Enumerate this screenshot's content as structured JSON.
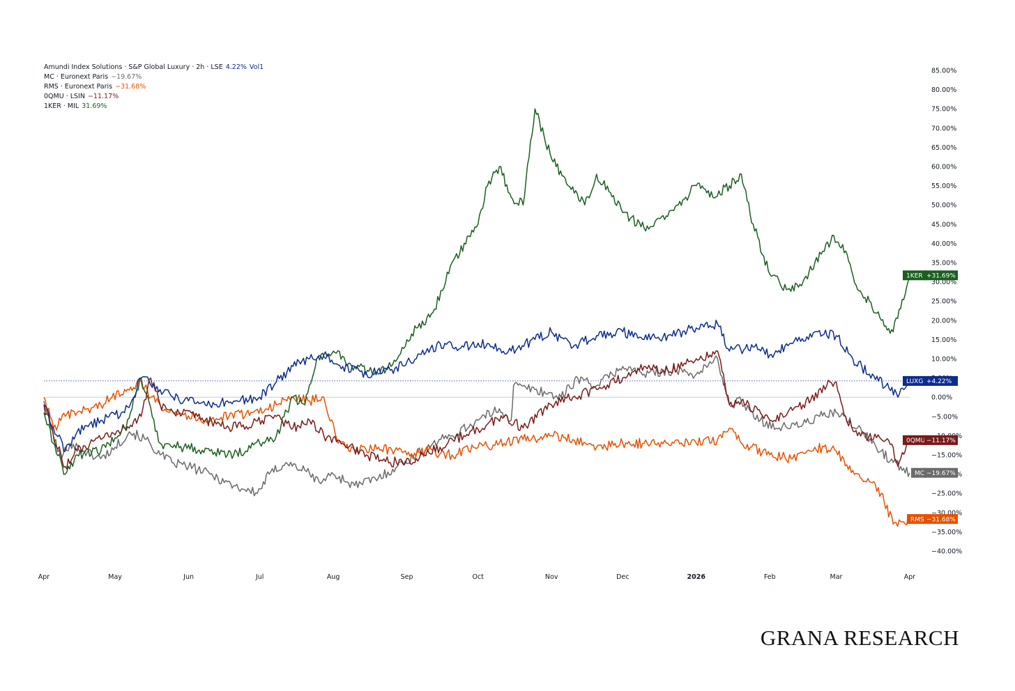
{
  "legend": [
    {
      "label": "Amundi Index Solutions · S&P Global Luxury · 2h · LSE",
      "value": "4.22%",
      "extra": "Vol1",
      "color": "#0d2b8e"
    },
    {
      "label": "MC · Euronext Paris",
      "value": "−19.67%",
      "color": "#6b6b6b"
    },
    {
      "label": "RMS · Euronext Paris",
      "value": "−31.68%",
      "color": "#e65100"
    },
    {
      "label": "0QMU · LSIN",
      "value": "−11.17%",
      "color": "#7a1a1a"
    },
    {
      "label": "1KER · MIL",
      "value": "31.69%",
      "color": "#1b5e20"
    }
  ],
  "watermark": "GRANA RESEARCH",
  "chart_data": {
    "type": "line",
    "y_unit": "%",
    "ylim": [
      -40,
      85
    ],
    "y_ticks": [
      "85.00%",
      "80.00%",
      "75.00%",
      "70.00%",
      "65.00%",
      "60.00%",
      "55.00%",
      "50.00%",
      "45.00%",
      "40.00%",
      "35.00%",
      "30.00%",
      "25.00%",
      "20.00%",
      "15.00%",
      "10.00%",
      "5.00%",
      "0.00%",
      "−5.00%",
      "−10.00%",
      "−15.00%",
      "−20.00%",
      "−25.00%",
      "−30.00%",
      "−35.00%",
      "−40.00%"
    ],
    "x_ticks": [
      {
        "label": "Apr",
        "date": "2025-04-01"
      },
      {
        "label": "May",
        "date": "2025-05-01"
      },
      {
        "label": "Jun",
        "date": "2025-06-01"
      },
      {
        "label": "Jul",
        "date": "2025-07-01"
      },
      {
        "label": "Aug",
        "date": "2025-08-01"
      },
      {
        "label": "Sep",
        "date": "2025-09-01"
      },
      {
        "label": "Oct",
        "date": "2025-10-01"
      },
      {
        "label": "Nov",
        "date": "2025-11-01"
      },
      {
        "label": "Dec",
        "date": "2025-12-01"
      },
      {
        "label": "2026",
        "date": "2026-01-01"
      },
      {
        "label": "Feb",
        "date": "2026-02-01"
      },
      {
        "label": "Mar",
        "date": "2026-03-01"
      },
      {
        "label": "Apr",
        "date": "2026-04-01"
      }
    ],
    "xlim": [
      "2025-04-01",
      "2026-04-01"
    ],
    "reference_line": 4.22,
    "series": [
      {
        "name": "MC",
        "color": "#6b6b6b",
        "last": "−19.67%",
        "tag": "MC",
        "x": [
          "2025-04-01",
          "2025-04-04",
          "2025-04-08",
          "2025-04-12",
          "2025-04-18",
          "2025-04-25",
          "2025-05-01",
          "2025-05-07",
          "2025-05-14",
          "2025-05-20",
          "2025-05-25",
          "2025-06-01",
          "2025-06-10",
          "2025-06-20",
          "2025-06-30",
          "2025-07-05",
          "2025-07-12",
          "2025-07-20",
          "2025-07-26",
          "2025-08-01",
          "2025-08-10",
          "2025-08-20",
          "2025-08-28",
          "2025-09-05",
          "2025-09-12",
          "2025-09-20",
          "2025-10-01",
          "2025-10-10",
          "2025-10-15",
          "2025-10-16",
          "2025-10-25",
          "2025-11-05",
          "2025-11-12",
          "2025-11-20",
          "2025-12-01",
          "2025-12-10",
          "2025-12-20",
          "2026-01-01",
          "2026-01-10",
          "2026-01-15",
          "2026-01-20",
          "2026-01-28",
          "2026-02-05",
          "2026-02-15",
          "2026-02-22",
          "2026-03-01",
          "2026-03-10",
          "2026-03-20",
          "2026-03-25",
          "2026-04-01"
        ],
        "y": [
          -1,
          -8,
          -16,
          -12,
          -14,
          -16,
          -13,
          -9,
          -11,
          -15,
          -17,
          -18,
          -20,
          -23,
          -25,
          -20,
          -17,
          -19,
          -22,
          -20,
          -23,
          -21,
          -18,
          -15,
          -12,
          -10,
          -6,
          -3,
          -6,
          3,
          2,
          0,
          5,
          3,
          8,
          6,
          7,
          6,
          10,
          -2,
          -1,
          -6,
          -8,
          -7,
          -5,
          -4,
          -8,
          -14,
          -17,
          -19.67
        ]
      },
      {
        "name": "RMS",
        "color": "#e65100",
        "last": "−31.68%",
        "tag": "RMS",
        "x": [
          "2025-04-01",
          "2025-04-05",
          "2025-04-10",
          "2025-04-15",
          "2025-04-25",
          "2025-05-05",
          "2025-05-12",
          "2025-05-16",
          "2025-05-20",
          "2025-05-28",
          "2025-06-08",
          "2025-06-18",
          "2025-06-28",
          "2025-07-08",
          "2025-07-15",
          "2025-07-22",
          "2025-07-28",
          "2025-08-03",
          "2025-08-10",
          "2025-08-20",
          "2025-09-01",
          "2025-09-10",
          "2025-09-20",
          "2025-10-01",
          "2025-10-10",
          "2025-10-20",
          "2025-11-01",
          "2025-11-10",
          "2025-11-20",
          "2025-12-01",
          "2025-12-10",
          "2025-12-20",
          "2026-01-01",
          "2026-01-10",
          "2026-01-15",
          "2026-01-20",
          "2026-02-01",
          "2026-02-10",
          "2026-02-20",
          "2026-03-01",
          "2026-03-08",
          "2026-03-15",
          "2026-03-20",
          "2026-03-25",
          "2026-04-01"
        ],
        "y": [
          0,
          -8,
          -5,
          -4,
          -2,
          2,
          4,
          0,
          -2,
          -4,
          -6,
          -5,
          -4,
          -2,
          0,
          -1,
          0,
          -12,
          -14,
          -13,
          -15,
          -14,
          -15,
          -13,
          -12,
          -11,
          -10,
          -11,
          -13,
          -12,
          -12,
          -12,
          -12,
          -11,
          -8,
          -12,
          -15,
          -16,
          -13,
          -14,
          -19,
          -22,
          -25,
          -33,
          -31.68
        ]
      },
      {
        "name": "0QMU",
        "color": "#7a1a1a",
        "last": "−11.17%",
        "tag": "0QMU",
        "x": [
          "2025-04-01",
          "2025-04-05",
          "2025-04-10",
          "2025-04-15",
          "2025-04-25",
          "2025-05-05",
          "2025-05-12",
          "2025-05-16",
          "2025-05-20",
          "2025-05-28",
          "2025-06-08",
          "2025-06-18",
          "2025-06-28",
          "2025-07-08",
          "2025-07-15",
          "2025-07-22",
          "2025-07-28",
          "2025-08-05",
          "2025-08-15",
          "2025-08-25",
          "2025-09-05",
          "2025-09-15",
          "2025-09-25",
          "2025-10-05",
          "2025-10-12",
          "2025-10-20",
          "2025-11-01",
          "2025-11-10",
          "2025-11-20",
          "2025-12-01",
          "2025-12-10",
          "2025-12-20",
          "2026-01-01",
          "2026-01-10",
          "2026-01-15",
          "2026-01-20",
          "2026-02-01",
          "2026-02-15",
          "2026-02-25",
          "2026-03-01",
          "2026-03-05",
          "2026-03-10",
          "2026-03-20",
          "2026-03-25",
          "2026-03-27",
          "2026-04-01"
        ],
        "y": [
          -2,
          -10,
          -18,
          -14,
          -11,
          -8,
          -5,
          5,
          -2,
          -4,
          -6,
          -8,
          -7,
          -5,
          -8,
          -6,
          -10,
          -12,
          -15,
          -17,
          -16,
          -13,
          -10,
          -7,
          -5,
          -8,
          -2,
          0,
          2,
          5,
          8,
          7,
          10,
          12,
          -2,
          -1,
          -6,
          -2,
          3,
          4,
          -5,
          -10,
          -11,
          -13,
          -18,
          -11.17
        ]
      },
      {
        "name": "1KER",
        "color": "#1b5e20",
        "last": "+31.69%",
        "tag": "1KER",
        "x": [
          "2025-04-01",
          "2025-04-05",
          "2025-04-10",
          "2025-04-15",
          "2025-04-25",
          "2025-05-05",
          "2025-05-12",
          "2025-05-20",
          "2025-05-30",
          "2025-06-10",
          "2025-06-20",
          "2025-07-01",
          "2025-07-08",
          "2025-07-15",
          "2025-07-20",
          "2025-07-25",
          "2025-08-01",
          "2025-08-10",
          "2025-08-20",
          "2025-08-28",
          "2025-09-05",
          "2025-09-12",
          "2025-09-20",
          "2025-10-01",
          "2025-10-05",
          "2025-10-10",
          "2025-10-15",
          "2025-10-20",
          "2025-10-25",
          "2025-11-01",
          "2025-11-08",
          "2025-11-15",
          "2025-11-20",
          "2025-12-01",
          "2025-12-10",
          "2025-12-20",
          "2026-01-01",
          "2026-01-08",
          "2026-01-15",
          "2026-01-20",
          "2026-01-25",
          "2026-02-01",
          "2026-02-08",
          "2026-02-15",
          "2026-02-20",
          "2026-02-28",
          "2026-03-05",
          "2026-03-10",
          "2026-03-15",
          "2026-03-20",
          "2026-03-25",
          "2026-04-01"
        ],
        "y": [
          -4,
          -12,
          -20,
          -15,
          -14,
          -8,
          5,
          -12,
          -13,
          -14,
          -15,
          -12,
          -10,
          0,
          -2,
          10,
          12,
          8,
          6,
          10,
          18,
          22,
          35,
          45,
          55,
          60,
          52,
          50,
          75,
          62,
          55,
          50,
          58,
          48,
          44,
          47,
          55,
          52,
          55,
          58,
          45,
          32,
          28,
          30,
          35,
          42,
          38,
          28,
          25,
          20,
          17,
          31.69
        ]
      },
      {
        "name": "LUXG",
        "color": "#0d2b8e",
        "last": "+4.22%",
        "tag": "LUXG",
        "x": [
          "2025-04-01",
          "2025-04-05",
          "2025-04-10",
          "2025-04-15",
          "2025-04-25",
          "2025-05-05",
          "2025-05-12",
          "2025-05-20",
          "2025-05-30",
          "2025-06-10",
          "2025-06-20",
          "2025-07-01",
          "2025-07-08",
          "2025-07-15",
          "2025-07-22",
          "2025-07-28",
          "2025-08-05",
          "2025-08-15",
          "2025-08-25",
          "2025-09-05",
          "2025-09-15",
          "2025-09-25",
          "2025-10-05",
          "2025-10-15",
          "2025-10-25",
          "2025-11-01",
          "2025-11-10",
          "2025-11-20",
          "2025-12-01",
          "2025-12-10",
          "2025-12-20",
          "2026-01-01",
          "2026-01-10",
          "2026-01-15",
          "2026-01-25",
          "2026-02-01",
          "2026-02-10",
          "2026-02-20",
          "2026-03-01",
          "2026-03-08",
          "2026-03-15",
          "2026-03-22",
          "2026-03-27",
          "2026-04-01"
        ],
        "y": [
          -2,
          -8,
          -14,
          -9,
          -6,
          -4,
          5,
          2,
          -1,
          -2,
          -1,
          0,
          4,
          8,
          10,
          11,
          8,
          6,
          7,
          10,
          14,
          13,
          14,
          12,
          15,
          17,
          13,
          16,
          17,
          15,
          16,
          18,
          19,
          12,
          13,
          11,
          14,
          17,
          16,
          10,
          6,
          3,
          0,
          4.22
        ]
      }
    ]
  }
}
